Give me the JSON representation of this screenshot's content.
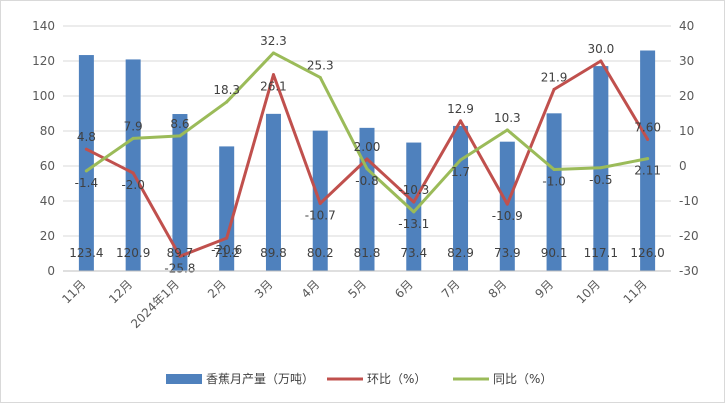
{
  "chart_data": {
    "type": "bar",
    "categories": [
      "11月",
      "12月",
      "2024年1月",
      "2月",
      "3月",
      "4月",
      "5月",
      "6月",
      "7月",
      "8月",
      "9月",
      "10月",
      "11月"
    ],
    "series": [
      {
        "name": "香蕉月产量（万吨）",
        "type": "bar",
        "axis": "left",
        "color": "#4f81bd",
        "values": [
          123.4,
          120.9,
          89.7,
          71.2,
          89.8,
          80.2,
          81.8,
          73.4,
          82.9,
          73.9,
          90.1,
          117.1,
          126.0
        ],
        "labels": [
          "123.4",
          "120.9",
          "89.7",
          "71.2",
          "89.8",
          "80.2",
          "81.8",
          "73.4",
          "82.9",
          "73.9",
          "90.1",
          "117.1",
          "126.0"
        ]
      },
      {
        "name": "环比（%）",
        "type": "line",
        "axis": "right",
        "color": "#c0504d",
        "values": [
          4.8,
          -2.0,
          -25.8,
          -20.6,
          26.1,
          -10.7,
          2.0,
          -10.3,
          12.9,
          -10.9,
          21.9,
          30.0,
          7.6
        ],
        "labels": [
          "4.8",
          "-2.0",
          "-25.8",
          "-20.6",
          "26.1",
          "-10.7",
          "2.00",
          "-10.3",
          "12.9",
          "-10.9",
          "21.9",
          "30.0",
          "7.60"
        ]
      },
      {
        "name": "同比（%）",
        "type": "line",
        "axis": "right",
        "color": "#9bbb59",
        "values": [
          -1.4,
          7.9,
          8.6,
          18.3,
          32.3,
          25.3,
          -0.8,
          -13.1,
          1.7,
          10.3,
          -1.0,
          -0.5,
          2.11
        ],
        "labels": [
          "-1.4",
          "7.9",
          "8.6",
          "18.3",
          "32.3",
          "25.3",
          "-0.8",
          "-13.1",
          "1.7",
          "10.3",
          "-1.0",
          "-0.5",
          "2.11"
        ]
      }
    ],
    "y_left": {
      "min": 0,
      "max": 140,
      "ticks": [
        "0",
        "20",
        "40",
        "60",
        "80",
        "100",
        "120",
        "140"
      ]
    },
    "y_right": {
      "min": -30,
      "max": 40,
      "ticks": [
        "-30",
        "-20",
        "-10",
        "0",
        "10",
        "20",
        "30",
        "40"
      ]
    },
    "grid": true,
    "legend_position": "bottom"
  }
}
